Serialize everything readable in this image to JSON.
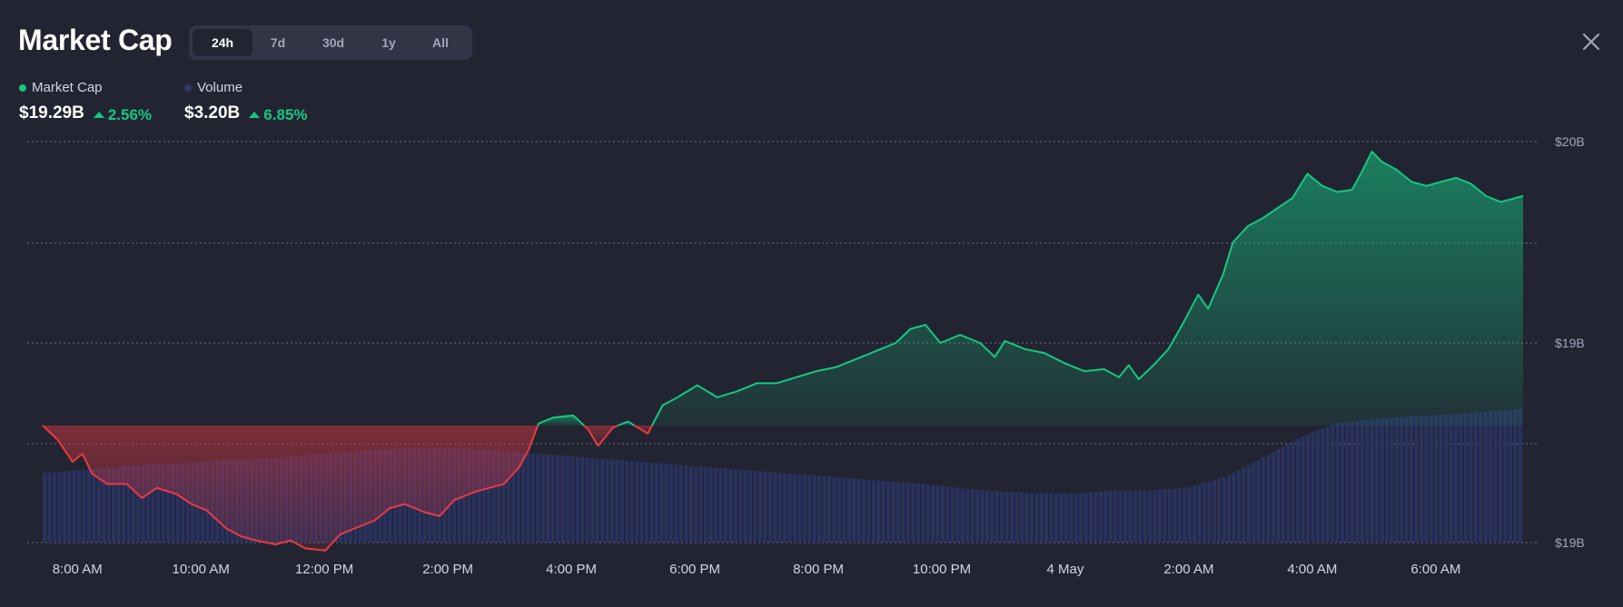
{
  "header": {
    "title": "Market Cap",
    "tabs": [
      {
        "label": "24h",
        "active": true
      },
      {
        "label": "7d",
        "active": false
      },
      {
        "label": "30d",
        "active": false
      },
      {
        "label": "1y",
        "active": false
      },
      {
        "label": "All",
        "active": false
      }
    ]
  },
  "legend": {
    "market_cap": {
      "label": "Market Cap",
      "value": "$19.29B",
      "change": "2.56%",
      "color": "#16c784"
    },
    "volume": {
      "label": "Volume",
      "value": "$3.20B",
      "change": "6.85%",
      "color": "#2e3a69"
    }
  },
  "icons": {
    "close": "close-icon",
    "up": "triangle-up-icon"
  },
  "colors": {
    "up": "#16c784",
    "down": "#ea3943",
    "volume": "#2b3567",
    "background": "#222531"
  },
  "chart_data": {
    "type": "area",
    "baseline": 18.59,
    "y_ticks": [
      {
        "value": 20.0,
        "label": "$20B"
      },
      {
        "value": 19.0,
        "label": "$19B"
      },
      {
        "label": "$19B"
      }
    ],
    "x_ticks": [
      "8:00 AM",
      "10:00 AM",
      "12:00 PM",
      "2:00 PM",
      "4:00 PM",
      "6:00 PM",
      "8:00 PM",
      "10:00 PM",
      "4 May",
      "2:00 AM",
      "4:00 AM",
      "6:00 AM"
    ],
    "series": [
      {
        "name": "Market Cap",
        "points": [
          [
            0,
            18.59
          ],
          [
            0.3,
            18.52
          ],
          [
            0.6,
            18.41
          ],
          [
            0.8,
            18.45
          ],
          [
            1.0,
            18.35
          ],
          [
            1.3,
            18.3
          ],
          [
            1.7,
            18.3
          ],
          [
            2.0,
            18.23
          ],
          [
            2.3,
            18.28
          ],
          [
            2.7,
            18.25
          ],
          [
            3.0,
            18.2
          ],
          [
            3.3,
            18.17
          ],
          [
            3.7,
            18.08
          ],
          [
            4.0,
            18.04
          ],
          [
            4.3,
            18.02
          ],
          [
            4.7,
            18.0
          ],
          [
            5.0,
            18.02
          ],
          [
            5.3,
            17.98
          ],
          [
            5.7,
            17.97
          ],
          [
            6.0,
            18.05
          ],
          [
            6.3,
            18.08
          ],
          [
            6.7,
            18.12
          ],
          [
            7.0,
            18.18
          ],
          [
            7.3,
            18.2
          ],
          [
            7.7,
            18.16
          ],
          [
            8.0,
            18.14
          ],
          [
            8.3,
            18.22
          ],
          [
            8.7,
            18.26
          ],
          [
            9.0,
            18.28
          ],
          [
            9.3,
            18.3
          ],
          [
            9.6,
            18.38
          ],
          [
            9.8,
            18.47
          ],
          [
            10.0,
            18.6
          ],
          [
            10.3,
            18.63
          ],
          [
            10.7,
            18.64
          ],
          [
            11.0,
            18.57
          ],
          [
            11.2,
            18.49
          ],
          [
            11.5,
            18.58
          ],
          [
            11.8,
            18.61
          ],
          [
            12.2,
            18.55
          ],
          [
            12.5,
            18.69
          ],
          [
            12.8,
            18.73
          ],
          [
            13.2,
            18.79
          ],
          [
            13.6,
            18.73
          ],
          [
            14.0,
            18.76
          ],
          [
            14.4,
            18.8
          ],
          [
            14.8,
            18.8
          ],
          [
            15.2,
            18.83
          ],
          [
            15.6,
            18.86
          ],
          [
            16.0,
            18.88
          ],
          [
            16.4,
            18.92
          ],
          [
            16.8,
            18.96
          ],
          [
            17.2,
            19.0
          ],
          [
            17.5,
            19.07
          ],
          [
            17.8,
            19.09
          ],
          [
            18.1,
            19.0
          ],
          [
            18.5,
            19.04
          ],
          [
            18.9,
            19.0
          ],
          [
            19.2,
            18.93
          ],
          [
            19.4,
            19.01
          ],
          [
            19.8,
            18.97
          ],
          [
            20.2,
            18.95
          ],
          [
            20.6,
            18.9
          ],
          [
            21.0,
            18.86
          ],
          [
            21.4,
            18.87
          ],
          [
            21.7,
            18.83
          ],
          [
            21.9,
            18.89
          ],
          [
            22.1,
            18.82
          ],
          [
            22.4,
            18.89
          ],
          [
            22.7,
            18.97
          ],
          [
            23.0,
            19.1
          ],
          [
            23.3,
            19.24
          ],
          [
            23.5,
            19.17
          ],
          [
            23.8,
            19.34
          ],
          [
            24.0,
            19.5
          ],
          [
            24.3,
            19.58
          ],
          [
            24.6,
            19.62
          ],
          [
            24.9,
            19.67
          ],
          [
            25.2,
            19.72
          ],
          [
            25.5,
            19.84
          ],
          [
            25.8,
            19.78
          ],
          [
            26.1,
            19.75
          ],
          [
            26.4,
            19.76
          ],
          [
            26.6,
            19.85
          ],
          [
            26.8,
            19.95
          ],
          [
            27.0,
            19.9
          ],
          [
            27.3,
            19.86
          ],
          [
            27.6,
            19.8
          ],
          [
            27.9,
            19.78
          ],
          [
            28.2,
            19.8
          ],
          [
            28.5,
            19.82
          ],
          [
            28.8,
            19.79
          ],
          [
            29.1,
            19.73
          ],
          [
            29.4,
            19.7
          ],
          [
            29.7,
            19.72
          ],
          [
            29.85,
            19.73
          ]
        ]
      },
      {
        "name": "Volume",
        "profile": [
          0.48,
          0.5,
          0.52,
          0.54,
          0.55,
          0.57,
          0.58,
          0.6,
          0.62,
          0.64,
          0.65,
          0.65,
          0.64,
          0.62,
          0.6,
          0.58,
          0.56,
          0.54,
          0.52,
          0.5,
          0.48,
          0.46,
          0.44,
          0.42,
          0.4,
          0.37,
          0.35,
          0.34,
          0.34,
          0.36,
          0.36,
          0.38,
          0.45,
          0.58,
          0.72,
          0.82,
          0.85,
          0.87,
          0.88,
          0.9,
          0.92
        ]
      }
    ]
  }
}
